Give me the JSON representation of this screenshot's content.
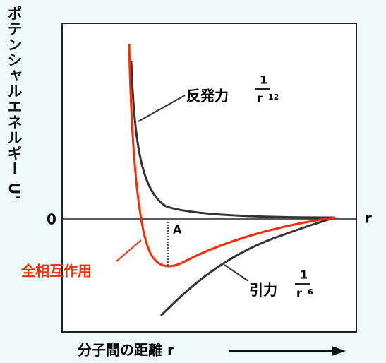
{
  "axis": {
    "y_label": "ポテンシャルエネルギー U'",
    "zero": "0",
    "x_symbol": "r",
    "x_label": "分子間の距離 r"
  },
  "repulsion": {
    "label": "反発力",
    "numerator": "1",
    "base": "r",
    "exponent": "12"
  },
  "attraction": {
    "label": "引力",
    "numerator": "1",
    "base": "r",
    "exponent": "6"
  },
  "total": {
    "label": "全相互作用"
  },
  "point": {
    "label": "A"
  }
}
